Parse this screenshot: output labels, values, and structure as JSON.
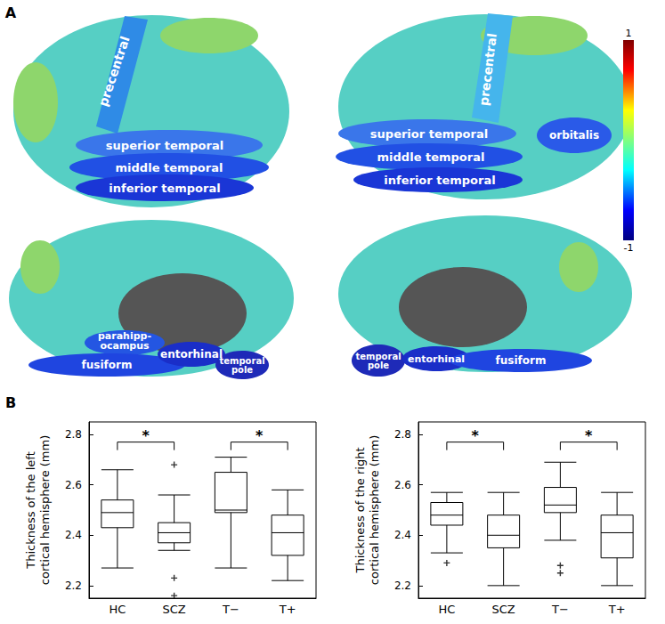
{
  "panels": [
    "A",
    "B"
  ],
  "brain_map": {
    "colorbar": {
      "range": [
        -1,
        1
      ],
      "ticks": [
        1,
        -1
      ]
    },
    "views": [
      {
        "labels": [
          "precentral",
          "superior temporal",
          "middle temporal",
          "inferior temporal"
        ]
      },
      {
        "labels": [
          "precentral",
          "superior temporal",
          "middle temporal",
          "inferior temporal",
          "orbitalis"
        ]
      },
      {
        "labels": [
          "parahipp-\nocampus",
          "fusiform",
          "entorhinal",
          "temporal\npole"
        ]
      },
      {
        "labels": [
          "temporal\npole",
          "entorhinal",
          "fusiform"
        ]
      }
    ]
  },
  "chart_data": [
    {
      "type": "boxplot",
      "y_label": "Thickness of the left\ncortical hemisphere (mm)",
      "categories": [
        "HC",
        "SCZ",
        "T−",
        "T+"
      ],
      "values": [
        [
          2.27,
          2.43,
          2.49,
          2.54,
          2.66
        ],
        [
          2.34,
          2.37,
          2.41,
          2.45,
          2.56
        ],
        [
          2.27,
          2.49,
          2.5,
          2.65,
          2.71
        ],
        [
          2.22,
          2.32,
          2.41,
          2.48,
          2.58
        ]
      ],
      "outliers": [
        [],
        [
          2.68,
          2.23,
          2.16
        ],
        [],
        []
      ],
      "marker": "plus",
      "color": "#000000",
      "ylim": [
        2.15,
        2.85
      ],
      "yticks": [
        2.2,
        2.4,
        2.6,
        2.8
      ],
      "grid": false,
      "annotations": [
        {
          "from": "HC",
          "to": "SCZ",
          "y": 2.77,
          "text": "*"
        },
        {
          "from": "T−",
          "to": "T+",
          "y": 2.77,
          "text": "*"
        }
      ]
    },
    {
      "type": "boxplot",
      "y_label": "Thickness of the right\ncortical hemisphere (mm)",
      "categories": [
        "HC",
        "SCZ",
        "T−",
        "T+"
      ],
      "values": [
        [
          2.33,
          2.44,
          2.48,
          2.53,
          2.57
        ],
        [
          2.2,
          2.35,
          2.4,
          2.48,
          2.57
        ],
        [
          2.38,
          2.49,
          2.52,
          2.59,
          2.69
        ],
        [
          2.2,
          2.31,
          2.41,
          2.48,
          2.57
        ]
      ],
      "outliers": [
        [
          2.29
        ],
        [],
        [
          2.28,
          2.25
        ],
        []
      ],
      "marker": "plus",
      "color": "#000000",
      "ylim": [
        2.15,
        2.85
      ],
      "yticks": [
        2.2,
        2.4,
        2.6,
        2.8
      ],
      "grid": false,
      "annotations": [
        {
          "from": "HC",
          "to": "SCZ",
          "y": 2.77,
          "text": "*"
        },
        {
          "from": "T−",
          "to": "T+",
          "y": 2.77,
          "text": "*"
        }
      ]
    }
  ]
}
